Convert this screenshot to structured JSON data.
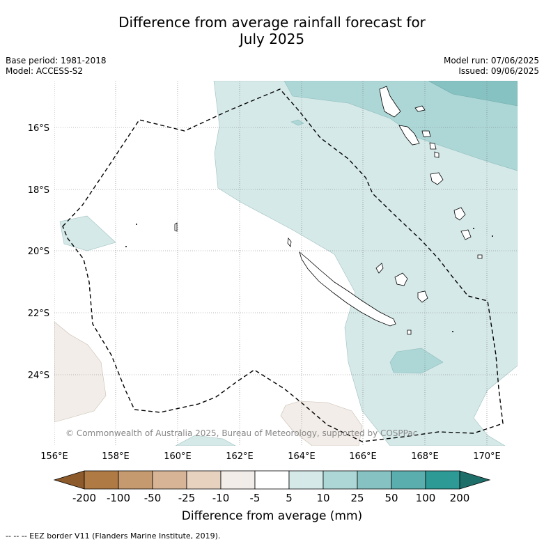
{
  "title_line1": "Difference from average rainfall forecast for",
  "title_line2": "July 2025",
  "info": {
    "base_period": "Base period: 1981-2018",
    "model": "Model: ACCESS-S2",
    "model_run": "Model run: 07/06/2025",
    "issued": "Issued: 09/06/2025"
  },
  "map": {
    "lat_labels": [
      "16°S",
      "18°S",
      "20°S",
      "22°S",
      "24°S"
    ],
    "lon_labels": [
      "156°E",
      "158°E",
      "160°E",
      "162°E",
      "164°E",
      "166°E",
      "168°E",
      "170°E"
    ],
    "copyright": "© Commonwealth of Australia 2025, Bureau of Meteorology, supported by COSPPac",
    "gridlines": true
  },
  "colorbar": {
    "ticks": [
      "-200",
      "-100",
      "-50",
      "-25",
      "-10",
      "-5",
      "5",
      "10",
      "25",
      "50",
      "100",
      "200"
    ],
    "colors": [
      "#8c5a2b",
      "#b07a45",
      "#c59a6e",
      "#d7b496",
      "#e7d2c0",
      "#f2ede8",
      "#ffffff",
      "#d5e9e8",
      "#add6d6",
      "#86c2c1",
      "#5aaead",
      "#2e9a96",
      "#1e6e6a"
    ],
    "label": "Difference from average (mm)"
  },
  "footer": "--  --  -- EEZ border V11 (Flanders Marine Institute, 2019)."
}
